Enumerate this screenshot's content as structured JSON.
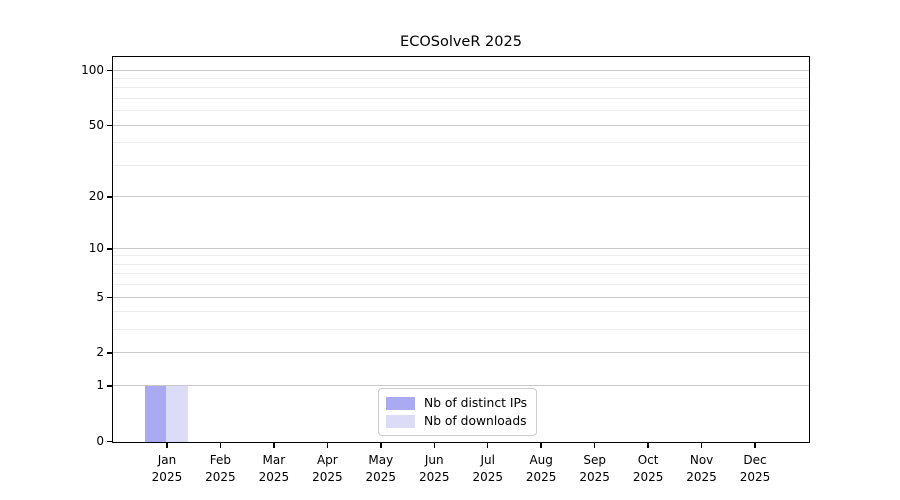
{
  "chart_data": {
    "type": "bar",
    "title": "ECOSolveR 2025",
    "x_categories": [
      "Jan 2025",
      "Feb 2025",
      "Mar 2025",
      "Apr 2025",
      "May 2025",
      "Jun 2025",
      "Jul 2025",
      "Aug 2025",
      "Sep 2025",
      "Oct 2025",
      "Nov 2025",
      "Dec 2025"
    ],
    "series": [
      {
        "name": "Nb of distinct IPs",
        "color": "#aaaaf2",
        "values": [
          1,
          0,
          0,
          0,
          0,
          0,
          0,
          0,
          0,
          0,
          0,
          0
        ]
      },
      {
        "name": "Nb of downloads",
        "color": "#dcdcf8",
        "values": [
          1,
          0,
          0,
          0,
          0,
          0,
          0,
          0,
          0,
          0,
          0,
          0
        ]
      }
    ],
    "y_scale": "log1p",
    "ylim": [
      0,
      118
    ],
    "y_ticks": [
      0,
      1,
      2,
      5,
      10,
      20,
      50,
      100
    ],
    "y_minor_gridlines": [
      3,
      4,
      6,
      7,
      8,
      9,
      30,
      40,
      60,
      70,
      80,
      90
    ],
    "grid": "horizontal",
    "legend_position": "lower center"
  },
  "colors": {
    "grid_major": "#c9c9c9",
    "grid_minor": "#ededed",
    "axis": "#000000",
    "legend_border": "#cccccc"
  }
}
